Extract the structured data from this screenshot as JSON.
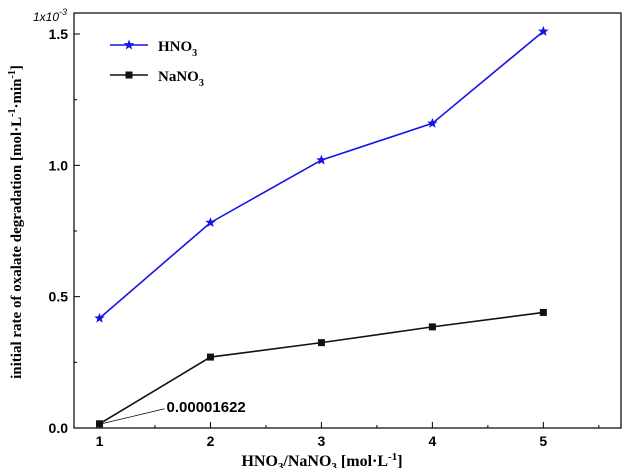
{
  "chart_data": {
    "type": "line",
    "x": [
      1,
      2,
      3,
      4,
      5
    ],
    "xticks": [
      "1",
      "2",
      "3",
      "4",
      "5"
    ],
    "xlim": [
      0.77,
      5.7
    ],
    "yticks": [
      "0.0",
      "0.5",
      "1.0",
      "1.5"
    ],
    "ytick_values": [
      0.0,
      0.5,
      1.0,
      1.5
    ],
    "ylim": [
      0,
      1.58
    ],
    "multiplier": {
      "base": "1x10",
      "exp": "-3"
    },
    "xlabel": {
      "a": "HNO",
      "a_sub": "3",
      "b": "/NaNO",
      "b_sub": "3",
      "c": " [mol·L",
      "c_sup": "-1",
      "d": "]"
    },
    "ylabel": {
      "a": "initial rate of oxalate degradation [mol·L",
      "a_sup": "-1",
      "b": "·min",
      "b_sup": "-1",
      "c": "]"
    },
    "series": [
      {
        "name": "HNO",
        "name_sub": "3",
        "marker": "star",
        "color": "#1414e6",
        "values": [
          0.418,
          0.782,
          1.02,
          1.16,
          1.51
        ]
      },
      {
        "name": "NaNO",
        "name_sub": "3",
        "marker": "square",
        "color": "#111111",
        "values": [
          0.016,
          0.27,
          0.325,
          0.385,
          0.44
        ]
      }
    ],
    "annotation": {
      "text": "0.00001622",
      "x": 1,
      "y": 0.016
    },
    "legend": "top-left",
    "grid": false
  }
}
